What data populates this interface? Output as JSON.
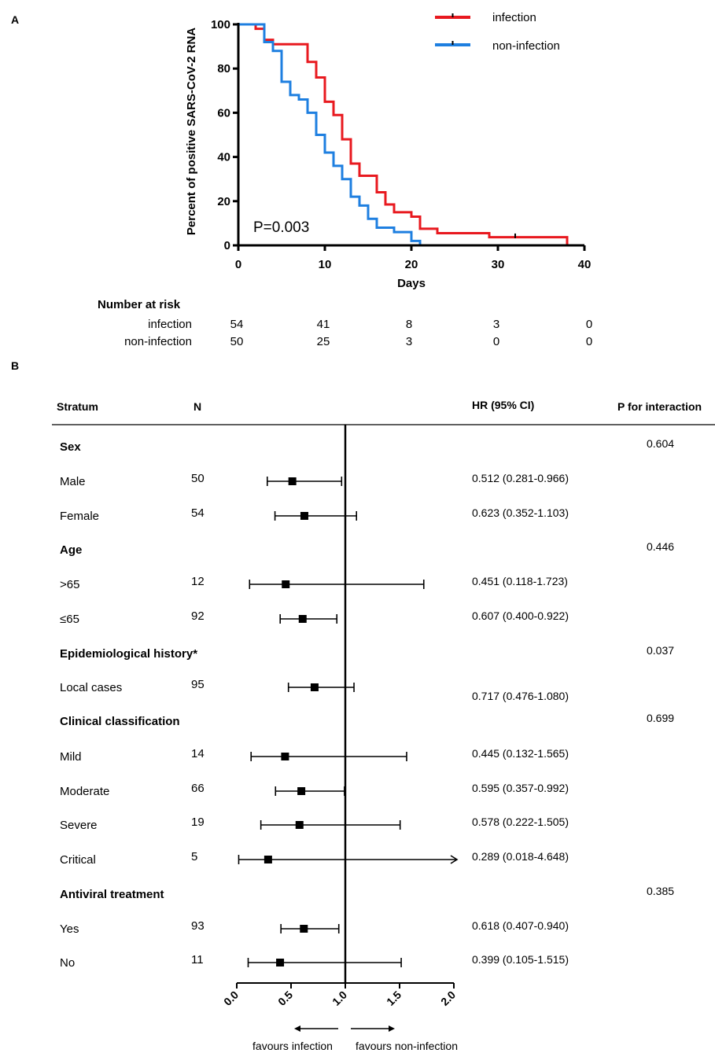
{
  "panel_a_label": "A",
  "panel_b_label": "B",
  "colors": {
    "infection": "#e8191f",
    "non_infection": "#1e7fe0",
    "ink": "#000000"
  },
  "chart_data": [
    {
      "type": "line",
      "subtype": "kaplan-meier",
      "title": "",
      "xlabel": "Days",
      "ylabel": "Percent of positive SARS-CoV-2 RNA",
      "xlim": [
        0,
        40
      ],
      "ylim": [
        0,
        100
      ],
      "xticks": [
        "0",
        "10",
        "20",
        "30",
        "40"
      ],
      "yticks": [
        "0",
        "20",
        "40",
        "60",
        "80",
        "100"
      ],
      "annotation": "P=0.003",
      "legend_position": "top-right",
      "series": [
        {
          "name": "infection",
          "color": "#e8191f",
          "steps": [
            [
              0,
              100
            ],
            [
              2,
              98
            ],
            [
              3,
              93
            ],
            [
              4,
              91
            ],
            [
              8,
              83
            ],
            [
              9,
              76
            ],
            [
              10,
              65
            ],
            [
              11,
              59
            ],
            [
              12,
              48
            ],
            [
              13,
              37
            ],
            [
              14,
              31.5
            ],
            [
              16,
              24
            ],
            [
              17,
              18.5
            ],
            [
              18,
              15
            ],
            [
              20,
              13
            ],
            [
              21,
              7.5
            ],
            [
              23,
              5.5
            ],
            [
              29,
              3.7
            ],
            [
              38,
              0
            ]
          ],
          "end_day": 38,
          "censor_marks": [
            [
              32,
              4.3
            ]
          ]
        },
        {
          "name": "non-infection",
          "color": "#1e7fe0",
          "steps": [
            [
              0,
              100
            ],
            [
              3,
              92
            ],
            [
              4,
              88
            ],
            [
              5,
              74
            ],
            [
              6,
              68
            ],
            [
              7,
              66
            ],
            [
              8,
              60
            ],
            [
              9,
              50
            ],
            [
              10,
              42
            ],
            [
              11,
              36
            ],
            [
              12,
              30
            ],
            [
              13,
              22
            ],
            [
              14,
              18
            ],
            [
              15,
              12
            ],
            [
              16,
              8
            ],
            [
              18,
              6
            ],
            [
              20,
              2
            ],
            [
              21,
              0
            ]
          ],
          "end_day": 21,
          "censor_marks": []
        }
      ],
      "risk_table": {
        "title": "Number at risk",
        "days": [
          0,
          10,
          20,
          30,
          40
        ],
        "rows": [
          {
            "label": "infection",
            "values": [
              "54",
              "41",
              "8",
              "3",
              "0"
            ]
          },
          {
            "label": "non-infection",
            "values": [
              "50",
              "25",
              "3",
              "0",
              "0"
            ]
          }
        ]
      }
    },
    {
      "type": "forest",
      "xlim": [
        0,
        2
      ],
      "xticks": [
        "0.0",
        "0.5",
        "1.0",
        "1.5",
        "2.0"
      ],
      "reference_line": 1.0,
      "headers": {
        "stratum": "Stratum",
        "n": "N",
        "hr": "HR (95% CI)",
        "p": "P for interaction"
      },
      "direction_labels": {
        "left": "favours infection",
        "right": "favours non-infection"
      },
      "rows": [
        {
          "kind": "group",
          "label": "Sex",
          "p": "0.604"
        },
        {
          "kind": "item",
          "label": "Male",
          "n": "50",
          "hr": 0.512,
          "lo": 0.281,
          "hi": 0.966,
          "text": "0.512 (0.281-0.966)"
        },
        {
          "kind": "item",
          "label": "Female",
          "n": "54",
          "hr": 0.623,
          "lo": 0.352,
          "hi": 1.103,
          "text": "0.623 (0.352-1.103)"
        },
        {
          "kind": "group",
          "label": "Age",
          "p": "0.446"
        },
        {
          "kind": "item",
          "label": ">65",
          "n": "12",
          "hr": 0.451,
          "lo": 0.118,
          "hi": 1.723,
          "text": "0.451 (0.118-1.723)"
        },
        {
          "kind": "item",
          "label": "≤65",
          "n": "92",
          "hr": 0.607,
          "lo": 0.4,
          "hi": 0.922,
          "text": "0.607 (0.400-0.922)"
        },
        {
          "kind": "group",
          "label": "Epidemiological history*",
          "p": "0.037"
        },
        {
          "kind": "item",
          "label": "Local cases",
          "n": "95",
          "hr": 0.717,
          "lo": 0.476,
          "hi": 1.08,
          "text": "0.717 (0.476-1.080)"
        },
        {
          "kind": "group",
          "label": "Clinical classification",
          "p": "0.699"
        },
        {
          "kind": "item",
          "label": "Mild",
          "n": "14",
          "hr": 0.445,
          "lo": 0.132,
          "hi": 1.565,
          "text": "0.445 (0.132-1.565)"
        },
        {
          "kind": "item",
          "label": "Moderate",
          "n": "66",
          "hr": 0.595,
          "lo": 0.357,
          "hi": 0.992,
          "text": "0.595 (0.357-0.992)"
        },
        {
          "kind": "item",
          "label": "Severe",
          "n": "19",
          "hr": 0.578,
          "lo": 0.222,
          "hi": 1.505,
          "text": "0.578 (0.222-1.505)"
        },
        {
          "kind": "item",
          "label": "Critical",
          "n": "5",
          "hr": 0.289,
          "lo": 0.018,
          "hi": 4.648,
          "text": "0.289 (0.018-4.648)"
        },
        {
          "kind": "group",
          "label": "Antiviral treatment",
          "p": "0.385"
        },
        {
          "kind": "item",
          "label": "Yes",
          "n": "93",
          "hr": 0.618,
          "lo": 0.407,
          "hi": 0.94,
          "text": "0.618 (0.407-0.940)"
        },
        {
          "kind": "item",
          "label": "No",
          "n": "11",
          "hr": 0.399,
          "lo": 0.105,
          "hi": 1.515,
          "text": "0.399 (0.105-1.515)"
        }
      ]
    }
  ]
}
